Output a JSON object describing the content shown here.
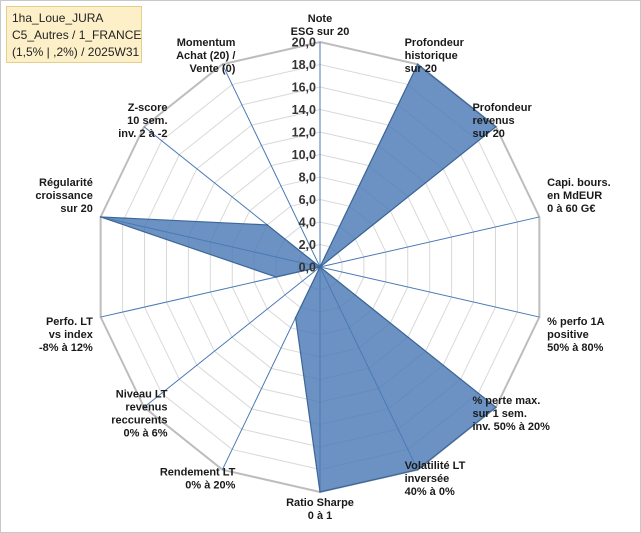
{
  "info_box": {
    "line1": "1ha_Loue_JURA",
    "line2": "C5_Autres / 1_FRANCE",
    "line3": "(1,5% | ,2%) / 2025W31"
  },
  "chart_data": {
    "type": "radar",
    "title": "",
    "rlim": [
      0,
      20
    ],
    "tick_step": 2,
    "tick_labels": [
      "0,0",
      "2,0",
      "4,0",
      "6,0",
      "8,0",
      "10,0",
      "12,0",
      "14,0",
      "16,0",
      "18,0",
      "20,0"
    ],
    "grid": true,
    "categories": [
      [
        "Note",
        "ESG sur 20"
      ],
      [
        "Profondeur",
        "historique",
        "sur 20"
      ],
      [
        "Profondeur",
        "revenus",
        "sur 20"
      ],
      [
        "Capi. bours.",
        "en MdEUR",
        "0 à 60 G€"
      ],
      [
        "% perfo 1A",
        "positive",
        "50% à 80%"
      ],
      [
        "% perte max.",
        "sur 1 sem.",
        "inv. 50% à 20%"
      ],
      [
        "Volatilité LT",
        "inversée",
        "40% à 0%"
      ],
      [
        "Ratio Sharpe",
        "0 à 1"
      ],
      [
        "Rendement LT",
        "0% à 20%"
      ],
      [
        "Niveau LT",
        "revenus",
        "reccurents",
        "0% à 6%"
      ],
      [
        "Perfo. LT",
        "vs index",
        "-8% à 12%"
      ],
      [
        "Régularité",
        "croissance",
        "sur 20"
      ],
      [
        "Z-score",
        "10 sem.",
        "inv. 2 à -2"
      ],
      [
        "Momentum",
        "Achat (20) /",
        "Vente (0)"
      ]
    ],
    "values": [
      0,
      20,
      20,
      0,
      0,
      20,
      20,
      20,
      5,
      0,
      4,
      20,
      6,
      0
    ],
    "series_color": "#4a7ab5"
  }
}
